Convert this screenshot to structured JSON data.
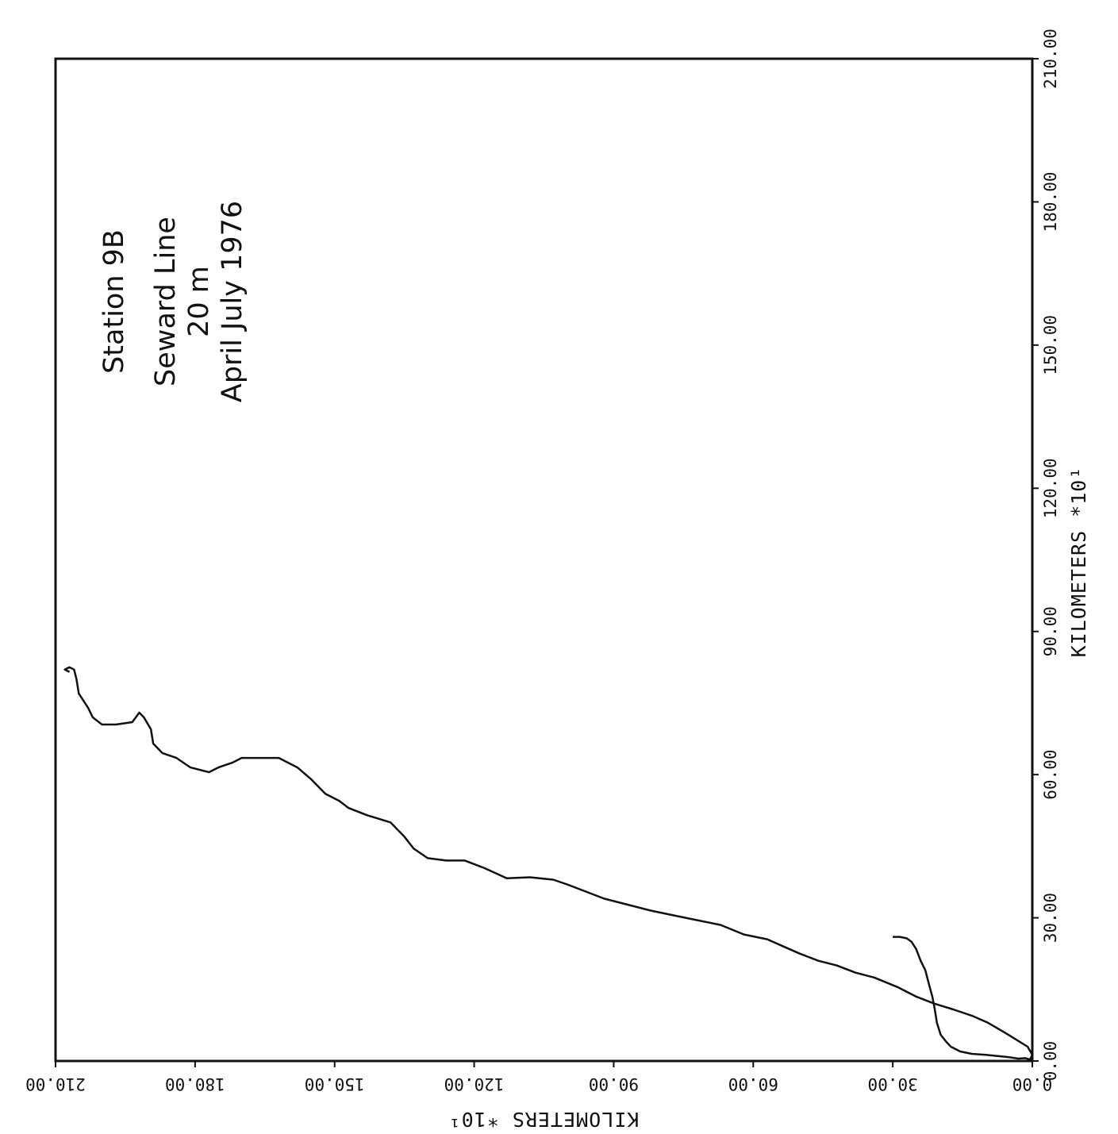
{
  "chart_data": {
    "type": "line",
    "annotations": [
      "Station 9B",
      "Seward Line",
      "20 m",
      "April July 1976"
    ],
    "xlabel": "KILOMETERS  *10¹",
    "ylabel": "KILOMETERS  *10¹",
    "xlim": [
      0,
      210
    ],
    "ylim": [
      0,
      210
    ],
    "x_ticks": [
      "0.00",
      "30.00",
      "60.00",
      "90.00",
      "120.00",
      "150.00",
      "180.00",
      "210.00"
    ],
    "y_ticks": [
      "0.00",
      "30.00",
      "60.00",
      "90.00",
      "120.00",
      "150.00",
      "180.00",
      "210.00"
    ],
    "grid": false,
    "series": [
      {
        "values_xy": [
          [
            26.0,
            30.0
          ],
          [
            26.0,
            28.5
          ],
          [
            25.7,
            27.0
          ],
          [
            25.0,
            26.0
          ],
          [
            23.5,
            25.0
          ],
          [
            21.0,
            24.0
          ],
          [
            19.0,
            23.0
          ],
          [
            16.0,
            22.2
          ],
          [
            13.5,
            21.5
          ],
          [
            11.0,
            21.0
          ],
          [
            8.0,
            20.5
          ],
          [
            5.5,
            19.7
          ],
          [
            4.0,
            18.5
          ],
          [
            3.0,
            17.5
          ],
          [
            2.0,
            15.5
          ],
          [
            1.5,
            13.0
          ],
          [
            1.3,
            10.0
          ],
          [
            1.0,
            7.0
          ],
          [
            0.8,
            5.0
          ],
          [
            0.5,
            3.0
          ],
          [
            0.6,
            1.5
          ],
          [
            0.3,
            0.5
          ],
          [
            1.3,
            0.0
          ],
          [
            3.0,
            1.0
          ],
          [
            4.5,
            3.5
          ],
          [
            6.0,
            6.0
          ],
          [
            8.0,
            9.5
          ],
          [
            9.5,
            13.0
          ],
          [
            10.8,
            17.0
          ],
          [
            12.0,
            21.0
          ],
          [
            13.5,
            25.0
          ],
          [
            15.5,
            29.0
          ],
          [
            17.5,
            34.0
          ],
          [
            18.5,
            38.0
          ],
          [
            20.0,
            42.0
          ],
          [
            21.0,
            46.0
          ],
          [
            22.5,
            50.0
          ],
          [
            24.0,
            53.5
          ],
          [
            25.5,
            57.0
          ],
          [
            26.5,
            62.0
          ],
          [
            28.5,
            67.0
          ],
          [
            29.5,
            72.0
          ],
          [
            30.5,
            77.0
          ],
          [
            31.5,
            82.0
          ],
          [
            33.0,
            88.0
          ],
          [
            34.0,
            92.0
          ],
          [
            35.5,
            96.0
          ],
          [
            37.0,
            100.0
          ],
          [
            38.0,
            103.0
          ],
          [
            38.5,
            108.0
          ],
          [
            38.3,
            113.0
          ],
          [
            40.5,
            118.0
          ],
          [
            42.0,
            122.0
          ],
          [
            42.0,
            126.0
          ],
          [
            42.5,
            130.0
          ],
          [
            44.5,
            133.0
          ],
          [
            47.0,
            135.0
          ],
          [
            50.0,
            138.0
          ],
          [
            51.5,
            143.0
          ],
          [
            53.0,
            147.0
          ],
          [
            54.5,
            149.0
          ],
          [
            56.0,
            152.0
          ],
          [
            59.0,
            155.0
          ],
          [
            61.5,
            158.0
          ],
          [
            63.5,
            162.0
          ],
          [
            63.5,
            166.0
          ],
          [
            63.5,
            170.0
          ],
          [
            62.5,
            172.0
          ],
          [
            61.5,
            175.0
          ],
          [
            60.5,
            177.0
          ],
          [
            61.5,
            181.0
          ],
          [
            63.5,
            184.0
          ],
          [
            64.5,
            187.0
          ],
          [
            66.5,
            189.0
          ],
          [
            69.5,
            189.5
          ],
          [
            72.0,
            191.0
          ],
          [
            73.0,
            192.0
          ],
          [
            71.0,
            193.5
          ],
          [
            70.5,
            197.0
          ],
          [
            70.5,
            200.0
          ],
          [
            72.0,
            202.0
          ],
          [
            74.0,
            203.0
          ],
          [
            77.0,
            205.0
          ],
          [
            80.0,
            205.5
          ],
          [
            82.0,
            206.0
          ],
          [
            82.5,
            207.0
          ],
          [
            82.0,
            208.0
          ],
          [
            81.5,
            207.0
          ]
        ]
      }
    ]
  }
}
